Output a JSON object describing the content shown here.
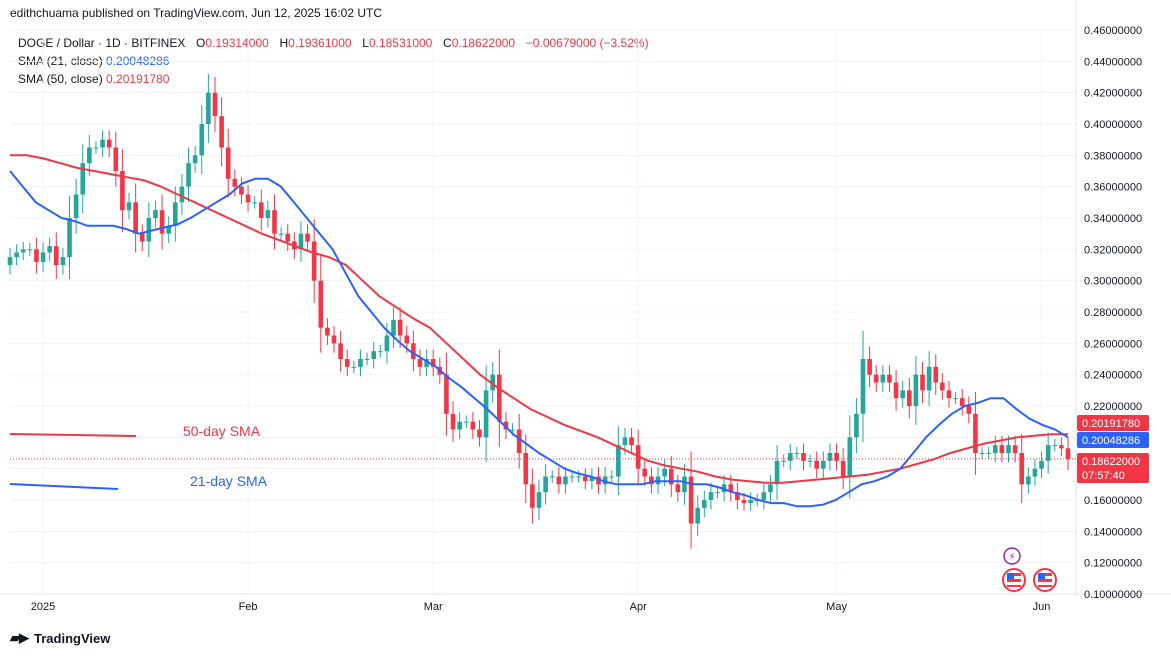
{
  "header": {
    "published": "edithchuama published on TradingView.com, Jun 12, 2025 16:02 UTC"
  },
  "legend": {
    "symbol": "DOGE / Dollar · 1D · BITFINEX",
    "open_label": "O",
    "open": "0.19314000",
    "high_label": "H",
    "high": "0.19361000",
    "low_label": "L",
    "low": "0.18531000",
    "close_label": "C",
    "close": "0.18622000",
    "change": "−0.00679000 (−3.52%)",
    "sma21_label": "SMA (21, close)",
    "sma21_value": "0.20048286",
    "sma50_label": "SMA (50, close)",
    "sma50_value": "0.20191780"
  },
  "brand": {
    "name": "TradingView"
  },
  "colors": {
    "up": "#26a69a",
    "down": "#f23645",
    "sma21": "#2962ff",
    "sma50": "#f23645"
  },
  "chart_data": {
    "type": "candlestick",
    "ylim": [
      0.1,
      0.46
    ],
    "y_ticks": [
      "0.46000000",
      "0.44000000",
      "0.42000000",
      "0.40000000",
      "0.38000000",
      "0.36000000",
      "0.34000000",
      "0.32000000",
      "0.30000000",
      "0.28000000",
      "0.26000000",
      "0.24000000",
      "0.22000000",
      "0.20000000",
      "0.18000000",
      "0.16000000",
      "0.14000000",
      "0.12000000",
      "0.10000000"
    ],
    "y_tick_values": [
      0.46,
      0.44,
      0.42,
      0.4,
      0.38,
      0.36,
      0.34,
      0.32,
      0.3,
      0.28,
      0.26,
      0.24,
      0.22,
      0.2,
      0.18,
      0.16,
      0.14,
      0.12,
      0.1
    ],
    "x_labels": [
      {
        "label": "2025",
        "day": 5
      },
      {
        "label": "Feb",
        "day": 36
      },
      {
        "label": "Mar",
        "day": 64
      },
      {
        "label": "Apr",
        "day": 95
      },
      {
        "label": "May",
        "day": 125
      },
      {
        "label": "Jun",
        "day": 156
      }
    ],
    "price_badges": [
      {
        "value": 0.2019178,
        "text": "0.20191780",
        "color": "#f23645"
      },
      {
        "value": 0.20048286,
        "text": "0.20048286",
        "color": "#2962ff"
      },
      {
        "value": 0.18622,
        "text": "0.18622000",
        "extra": "07:57:40",
        "color": "#f23645"
      }
    ],
    "annotations": [
      {
        "text": "50-day SMA",
        "color": "#f23645"
      },
      {
        "text": "21-day SMA",
        "color": "#2962ff"
      }
    ],
    "close_series": [
      0.315,
      0.318,
      0.32,
      0.32,
      0.312,
      0.318,
      0.322,
      0.31,
      0.315,
      0.34,
      0.355,
      0.375,
      0.385,
      0.385,
      0.39,
      0.385,
      0.37,
      0.345,
      0.35,
      0.33,
      0.325,
      0.34,
      0.345,
      0.33,
      0.335,
      0.35,
      0.36,
      0.375,
      0.38,
      0.4,
      0.42,
      0.405,
      0.385,
      0.365,
      0.36,
      0.355,
      0.35,
      0.35,
      0.34,
      0.345,
      0.33,
      0.33,
      0.325,
      0.32,
      0.33,
      0.325,
      0.3,
      0.27,
      0.265,
      0.26,
      0.25,
      0.245,
      0.245,
      0.25,
      0.25,
      0.255,
      0.255,
      0.265,
      0.275,
      0.265,
      0.26,
      0.25,
      0.245,
      0.25,
      0.245,
      0.24,
      0.215,
      0.205,
      0.21,
      0.21,
      0.205,
      0.2,
      0.23,
      0.24,
      0.21,
      0.205,
      0.205,
      0.19,
      0.17,
      0.155,
      0.165,
      0.175,
      0.175,
      0.17,
      0.175,
      0.175,
      0.175,
      0.172,
      0.175,
      0.17,
      0.175,
      0.175,
      0.195,
      0.2,
      0.195,
      0.18,
      0.175,
      0.17,
      0.175,
      0.18,
      0.17,
      0.165,
      0.175,
      0.145,
      0.155,
      0.16,
      0.165,
      0.165,
      0.17,
      0.165,
      0.16,
      0.158,
      0.16,
      0.16,
      0.165,
      0.17,
      0.185,
      0.185,
      0.19,
      0.19,
      0.185,
      0.185,
      0.18,
      0.185,
      0.19,
      0.185,
      0.175,
      0.2,
      0.215,
      0.25,
      0.24,
      0.235,
      0.24,
      0.235,
      0.225,
      0.23,
      0.22,
      0.24,
      0.23,
      0.245,
      0.235,
      0.23,
      0.225,
      0.225,
      0.22,
      0.215,
      0.19,
      0.19,
      0.19,
      0.195,
      0.19,
      0.195,
      0.19,
      0.17,
      0.175,
      0.18,
      0.185,
      0.195,
      0.195,
      0.193,
      0.186
    ],
    "sma21": [
      0.37,
      0.36,
      0.35,
      0.345,
      0.34,
      0.338,
      0.335,
      0.335,
      0.335,
      0.333,
      0.33,
      0.332,
      0.334,
      0.336,
      0.34,
      0.345,
      0.35,
      0.355,
      0.362,
      0.365,
      0.365,
      0.36,
      0.35,
      0.34,
      0.33,
      0.32,
      0.305,
      0.29,
      0.28,
      0.27,
      0.262,
      0.255,
      0.25,
      0.245,
      0.238,
      0.232,
      0.225,
      0.218,
      0.21,
      0.202,
      0.196,
      0.19,
      0.185,
      0.18,
      0.177,
      0.175,
      0.172,
      0.17,
      0.17,
      0.17,
      0.172,
      0.172,
      0.172,
      0.17,
      0.17,
      0.168,
      0.165,
      0.163,
      0.16,
      0.158,
      0.158,
      0.156,
      0.156,
      0.157,
      0.16,
      0.165,
      0.17,
      0.172,
      0.175,
      0.18,
      0.19,
      0.2,
      0.208,
      0.215,
      0.22,
      0.222,
      0.225,
      0.225,
      0.218,
      0.212,
      0.208,
      0.205,
      0.2
    ],
    "sma50": [
      0.38,
      0.38,
      0.378,
      0.375,
      0.372,
      0.37,
      0.368,
      0.366,
      0.364,
      0.36,
      0.355,
      0.35,
      0.345,
      0.34,
      0.335,
      0.33,
      0.326,
      0.322,
      0.318,
      0.315,
      0.31,
      0.3,
      0.29,
      0.283,
      0.276,
      0.27,
      0.26,
      0.25,
      0.24,
      0.232,
      0.225,
      0.218,
      0.213,
      0.208,
      0.204,
      0.2,
      0.195,
      0.19,
      0.185,
      0.182,
      0.18,
      0.178,
      0.175,
      0.173,
      0.172,
      0.171,
      0.171,
      0.172,
      0.173,
      0.174,
      0.175,
      0.176,
      0.178,
      0.18,
      0.183,
      0.186,
      0.19,
      0.193,
      0.196,
      0.198,
      0.2,
      0.201,
      0.202,
      0.202
    ]
  }
}
